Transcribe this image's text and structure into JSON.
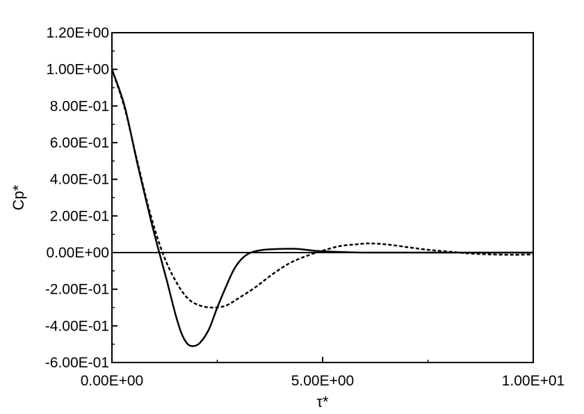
{
  "chart_data": {
    "type": "line",
    "title": "",
    "xlabel": "τ*",
    "ylabel": "Cp*",
    "xlim": [
      0,
      10
    ],
    "ylim": [
      -0.6,
      1.2
    ],
    "grid": false,
    "legend": "none",
    "x_ticks": [
      {
        "value": 0,
        "label": "0.00E+00"
      },
      {
        "value": 5,
        "label": "5.00E+00"
      },
      {
        "value": 10,
        "label": "1.00E+01"
      }
    ],
    "x_minor_ticks": [
      2.5,
      7.5
    ],
    "y_ticks": [
      {
        "value": 1.2,
        "label": "1.20E+00"
      },
      {
        "value": 1.0,
        "label": "1.00E+00"
      },
      {
        "value": 0.8,
        "label": "8.00E-01"
      },
      {
        "value": 0.6,
        "label": "6.00E-01"
      },
      {
        "value": 0.4,
        "label": "4.00E-01"
      },
      {
        "value": 0.2,
        "label": "2.00E-01"
      },
      {
        "value": 0.0,
        "label": "0.00E+00"
      },
      {
        "value": -0.2,
        "label": "-2.00E-01"
      },
      {
        "value": -0.4,
        "label": "-4.00E-01"
      },
      {
        "value": -0.6,
        "label": "-6.00E-01"
      }
    ],
    "zero_line": true,
    "series": [
      {
        "style": "solid",
        "color": "#000000",
        "x": [
          0,
          0.3,
          0.6,
          0.9,
          1.1,
          1.3,
          1.5,
          1.65,
          1.8,
          1.95,
          2.1,
          2.3,
          2.5,
          2.7,
          2.9,
          3.1,
          3.3,
          3.6,
          4.0,
          4.4,
          4.8,
          5.2,
          5.6,
          6.0,
          7.0,
          8.0,
          9.0,
          10.0
        ],
        "y": [
          1.0,
          0.8,
          0.49,
          0.2,
          0.02,
          -0.15,
          -0.33,
          -0.44,
          -0.5,
          -0.51,
          -0.49,
          -0.42,
          -0.3,
          -0.19,
          -0.09,
          -0.03,
          0.0,
          0.015,
          0.02,
          0.02,
          0.01,
          0.005,
          0.002,
          0.0,
          0.0,
          0.0,
          0.0,
          0.0
        ]
      },
      {
        "style": "dashed",
        "color": "#000000",
        "x": [
          0,
          0.3,
          0.6,
          0.9,
          1.2,
          1.5,
          1.8,
          2.1,
          2.4,
          2.7,
          3.0,
          3.4,
          3.8,
          4.2,
          4.6,
          5.0,
          5.4,
          5.8,
          6.1,
          6.5,
          7.0,
          7.5,
          8.0,
          8.5,
          9.0,
          9.5,
          10.0
        ],
        "y": [
          1.0,
          0.79,
          0.5,
          0.22,
          0.0,
          -0.15,
          -0.25,
          -0.29,
          -0.3,
          -0.29,
          -0.25,
          -0.19,
          -0.12,
          -0.06,
          -0.02,
          0.01,
          0.035,
          0.045,
          0.05,
          0.045,
          0.03,
          0.015,
          0.005,
          -0.005,
          -0.01,
          -0.012,
          -0.01
        ]
      }
    ]
  }
}
